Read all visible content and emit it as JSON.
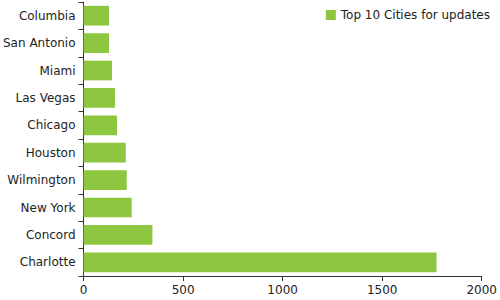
{
  "chart_data": {
    "type": "bar",
    "orientation": "horizontal",
    "categories": [
      "Charlotte",
      "Concord",
      "New York",
      "Wilmington",
      "Houston",
      "Chicago",
      "Las Vegas",
      "Miami",
      "San Antonio",
      "Columbia"
    ],
    "series": [
      {
        "name": "Top 10 Cities for updates",
        "color": "#8dc63f",
        "values": [
          1773,
          346,
          242,
          217,
          212,
          168,
          158,
          143,
          128,
          128
        ]
      }
    ],
    "xlim": [
      0,
      2000
    ],
    "xticks": [
      0,
      500,
      1000,
      1500,
      2000
    ],
    "grid": false,
    "legend": "top-right"
  }
}
